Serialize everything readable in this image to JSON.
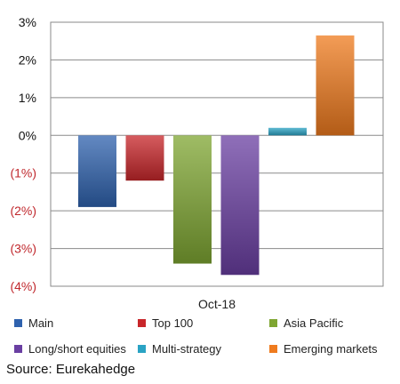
{
  "chart_data": {
    "type": "bar",
    "categories": [
      "Oct-18"
    ],
    "series": [
      {
        "name": "Main",
        "value": -1.9,
        "color": "#2F62AE"
      },
      {
        "name": "Top 100",
        "value": -1.2,
        "color": "#C8262A"
      },
      {
        "name": "Asia Pacific",
        "value": -3.4,
        "color": "#7FA632"
      },
      {
        "name": "Long/short equities",
        "value": -3.7,
        "color": "#6A3FA2"
      },
      {
        "name": "Multi-strategy",
        "value": 0.2,
        "color": "#2AA3C4"
      },
      {
        "name": "Emerging markets",
        "value": 2.65,
        "color": "#EF7B1E"
      }
    ],
    "ylim": [
      -4,
      3
    ],
    "yticks": [
      {
        "value": 3,
        "label": "3%"
      },
      {
        "value": 2,
        "label": "2%"
      },
      {
        "value": 1,
        "label": "1%"
      },
      {
        "value": 0,
        "label": "0%"
      },
      {
        "value": -1,
        "label": "(1%)"
      },
      {
        "value": -2,
        "label": "(2%)"
      },
      {
        "value": -3,
        "label": "(3%)"
      },
      {
        "value": -4,
        "label": "(4%)"
      }
    ],
    "grid": true,
    "legend_position": "bottom",
    "negative_tick_color": "#C0282D",
    "positive_tick_color": "#111111"
  },
  "source": "Source: Eurekahedge"
}
